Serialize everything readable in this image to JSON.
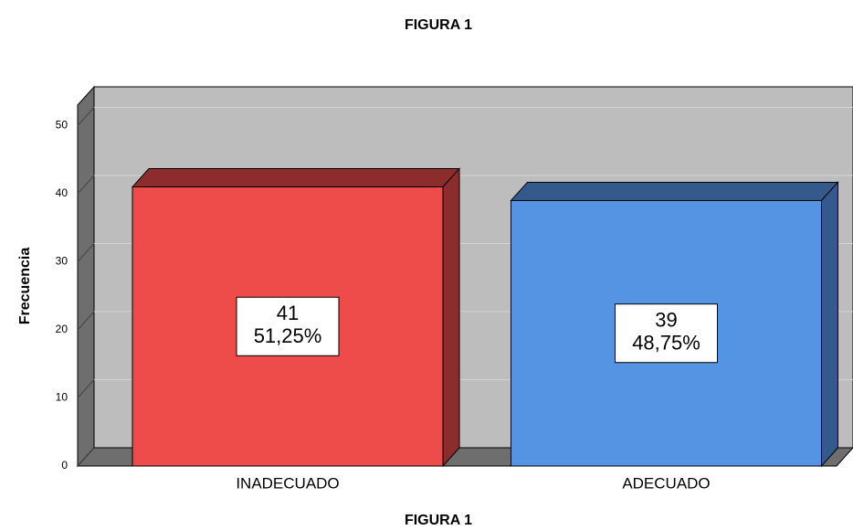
{
  "chart_data": {
    "type": "bar3d",
    "title": "FIGURA 1",
    "x_label": "FIGURA 1",
    "y_label": "Frecuencia",
    "categories": [
      "INADECUADO",
      "ADECUADO"
    ],
    "values": [
      41,
      39
    ],
    "percentages": [
      51.25,
      48.75
    ],
    "percentage_labels": [
      "51,25%",
      "48,75%"
    ],
    "colors": [
      "#ee4b4b",
      "#5494e3"
    ],
    "side_colors": [
      "#8c2c2c",
      "#345a8c"
    ],
    "ylim": [
      0,
      50
    ],
    "yticks": [
      0,
      10,
      20,
      30,
      40,
      50
    ],
    "grid": true
  }
}
